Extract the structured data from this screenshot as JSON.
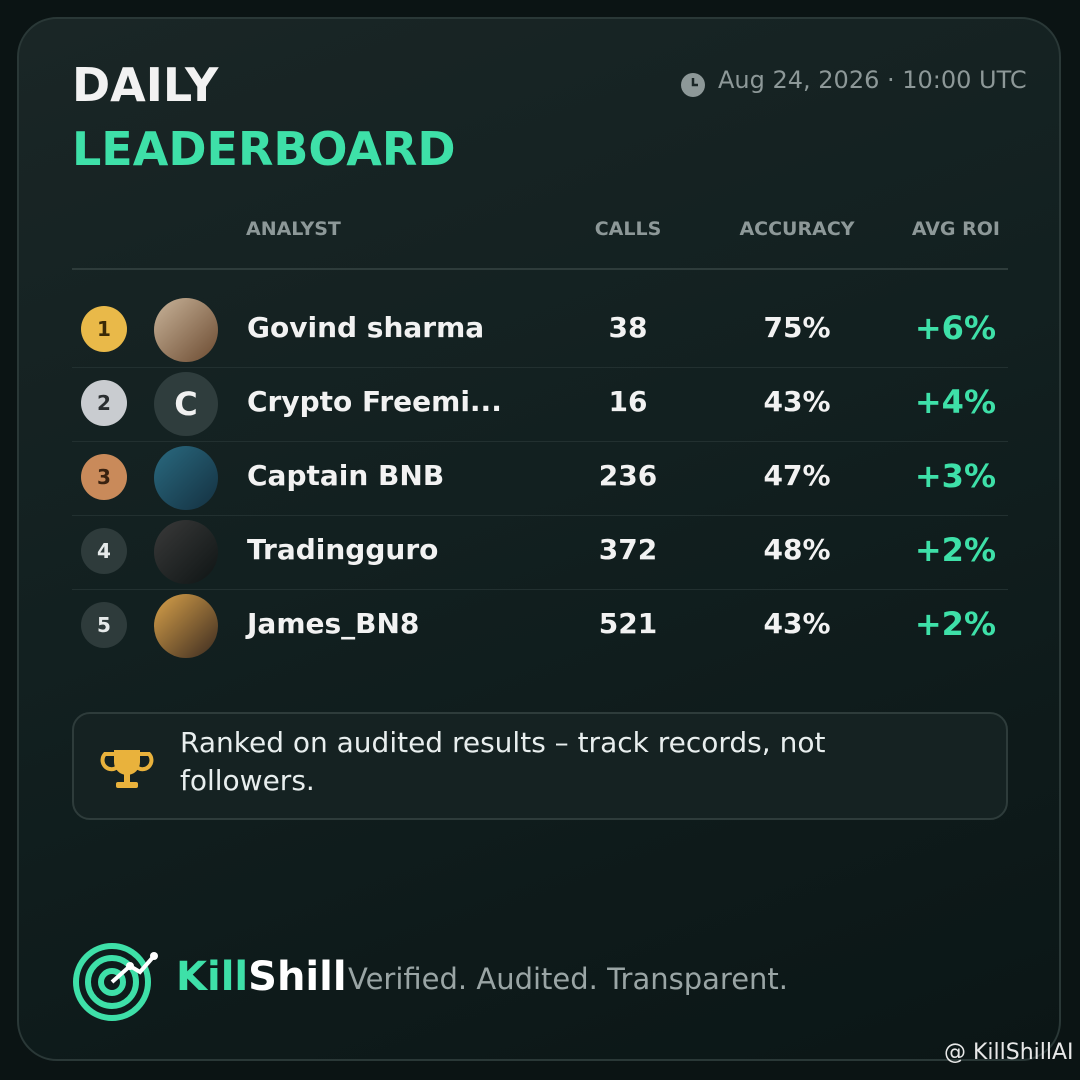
{
  "header": {
    "title_line1": "DAILY",
    "title_line2": "LEADERBOARD",
    "timestamp": "Aug 24, 2026 · 10:00 UTC"
  },
  "table": {
    "columns": [
      "ANALYST",
      "CALLS",
      "ACCURACY",
      "AVG ROI"
    ],
    "rows": [
      {
        "rank": "1",
        "name": "Govind sharma",
        "calls": "38",
        "accuracy": "75%",
        "roi": "+6%"
      },
      {
        "rank": "2",
        "avatar_initial": "C",
        "name": "Crypto Freemi...",
        "calls": "16",
        "accuracy": "43%",
        "roi": "+4%"
      },
      {
        "rank": "3",
        "name": "Captain BNB",
        "calls": "236",
        "accuracy": "47%",
        "roi": "+3%"
      },
      {
        "rank": "4",
        "name": "Tradingguro",
        "calls": "372",
        "accuracy": "48%",
        "roi": "+2%"
      },
      {
        "rank": "5",
        "name": "James_BN8",
        "calls": "521",
        "accuracy": "43%",
        "roi": "+2%"
      }
    ]
  },
  "note": "Ranked on audited results – track records, not followers.",
  "footer": {
    "brand_part1": "Kill",
    "brand_part2": "Shill",
    "tagline": "Verified. Audited. Transparent."
  },
  "watermark": "@ KillShillAI"
}
